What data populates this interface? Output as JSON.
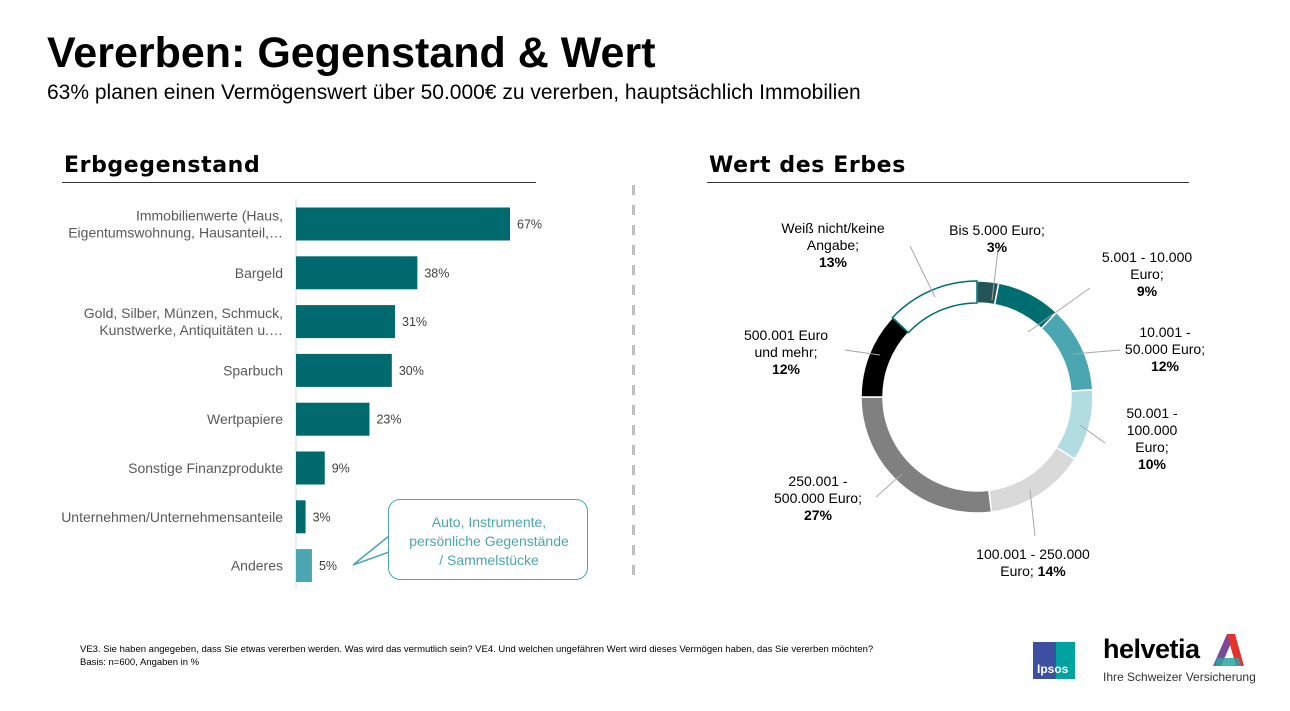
{
  "header": {
    "title": "Vererben: Gegenstand & Wert",
    "subtitle": "63% planen einen Vermögenswert über 50.000€ zu vererben, hauptsächlich Immobilien"
  },
  "chart_data": [
    {
      "type": "bar",
      "orientation": "horizontal",
      "title": "Erbgegenstand",
      "categories": [
        [
          "Immobilienwerte (Haus,",
          "Eigentumswohnung, Hausanteil,…"
        ],
        [
          "Bargeld"
        ],
        [
          "Gold, Silber, Münzen, Schmuck,",
          "Kunstwerke, Antiquitäten u.…"
        ],
        [
          "Sparbuch"
        ],
        [
          "Wertpapiere"
        ],
        [
          "Sonstige Finanzprodukte"
        ],
        [
          "Unternehmen/Unternehmensanteile"
        ],
        [
          "Anderes"
        ]
      ],
      "values": [
        67,
        38,
        31,
        30,
        23,
        9,
        3,
        5
      ],
      "value_labels": [
        "67%",
        "38%",
        "31%",
        "30%",
        "23%",
        "9%",
        "3%",
        "5%"
      ],
      "colors": [
        "#006a6e",
        "#006a6e",
        "#006a6e",
        "#006a6e",
        "#006a6e",
        "#006a6e",
        "#006a6e",
        "#4aa6b0"
      ],
      "unit": "%",
      "xlim": [
        0,
        100
      ],
      "grid": false,
      "annotation": {
        "target": "Anderes",
        "lines": [
          "Auto, Instrumente,",
          "persönliche Gegenstände",
          "/ Sammelstücke"
        ]
      }
    },
    {
      "type": "pie",
      "variant": "donut",
      "title": "Wert des Erbes",
      "slices": [
        {
          "label": [
            "Bis 5.000 Euro;"
          ],
          "value": 3,
          "pct": "3%",
          "color": "#23545a"
        },
        {
          "label": [
            "5.001 - 10.000",
            "Euro;"
          ],
          "value": 9,
          "pct": "9%",
          "color": "#006d70"
        },
        {
          "label": [
            "10.001 -",
            "50.000 Euro;"
          ],
          "value": 12,
          "pct": "12%",
          "color": "#4aa6b0"
        },
        {
          "label": [
            "50.001 -",
            "100.000",
            "Euro;"
          ],
          "value": 10,
          "pct": "10%",
          "color": "#b1dde0"
        },
        {
          "label": [
            "100.001 - 250.000",
            "Euro;"
          ],
          "value": 14,
          "pct": "14%",
          "color": "#d9d9d9"
        },
        {
          "label": [
            "250.001 -",
            "500.000 Euro;"
          ],
          "value": 27,
          "pct": "27%",
          "color": "#808080"
        },
        {
          "label": [
            "500.001 Euro",
            "und mehr;"
          ],
          "value": 12,
          "pct": "12%",
          "color": "#000000"
        },
        {
          "label": [
            "Weiß nicht/keine",
            "Angabe;"
          ],
          "value": 13,
          "pct": "13%",
          "color": "#ffffff",
          "outline": "#006d70"
        }
      ],
      "unit": "%"
    }
  ],
  "footer": {
    "question": "VE3. Sie haben angegeben, dass Sie etwas vererben werden. Was wird das vermutlich sein? VE4. Und welchen ungefähren Wert wird dieses Vermögen haben, das Sie vererben möchten?",
    "basis": "Basis: n=600, Angaben in %"
  },
  "logos": {
    "ipsos": "Ipsos",
    "helvetia": "helvetia",
    "helvetia_tagline": "Ihre Schweizer Versicherung"
  }
}
